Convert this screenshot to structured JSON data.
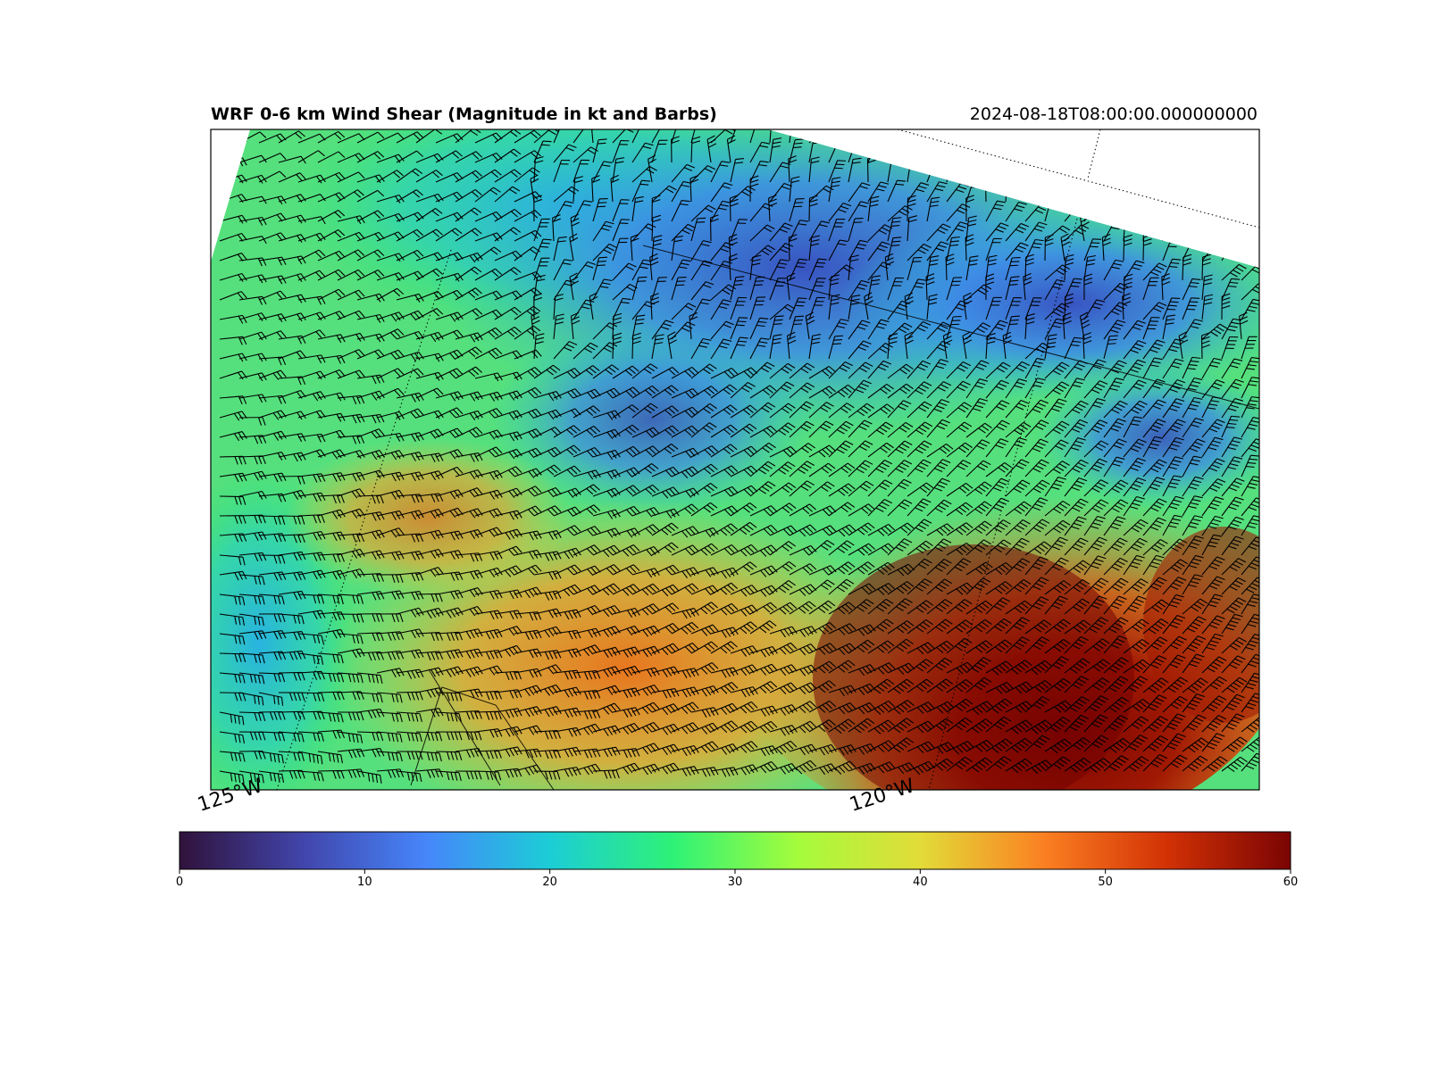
{
  "title": "WRF 0-6 km Wind Shear (Magnitude in kt and Barbs)",
  "valid_time": "2024-08-18T08:00:00.000000000",
  "longitude_labels": [
    "125°W",
    "120°W"
  ],
  "colorbar": {
    "min": 0,
    "max": 60,
    "ticks": [
      "0",
      "10",
      "20",
      "30",
      "40",
      "50",
      "60"
    ],
    "colormap": "turbo",
    "colors": [
      "#30123b",
      "#4145ab",
      "#4686fb",
      "#1ccdd6",
      "#2ef277",
      "#a4fc3c",
      "#e2dc38",
      "#fb8022",
      "#d23105",
      "#7a0403"
    ]
  },
  "colors": {
    "boundary_dashed": "#ffffff",
    "barb": "#000000"
  }
}
